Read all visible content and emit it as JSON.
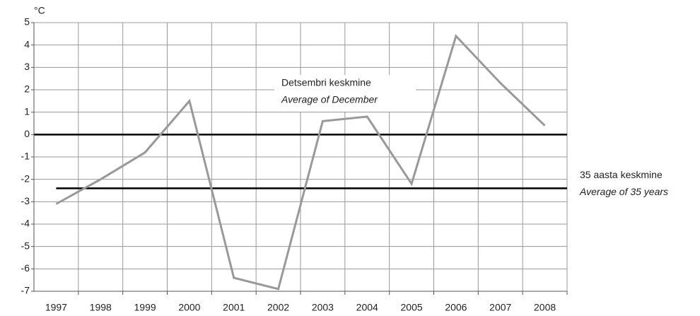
{
  "chart_data": {
    "type": "line",
    "y_unit": "°C",
    "categories": [
      "1997",
      "1998",
      "1999",
      "2000",
      "2001",
      "2002",
      "2003",
      "2004",
      "2005",
      "2006",
      "2007",
      "2008"
    ],
    "series": [
      {
        "color": "#999999",
        "values": [
          -3.1,
          -2.0,
          -0.8,
          1.5,
          -6.4,
          -6.9,
          0.6,
          0.8,
          -2.2,
          4.4,
          2.3,
          0.4
        ]
      }
    ],
    "ylim": [
      -7,
      5
    ],
    "yticks": [
      -7,
      -6,
      -5,
      -4,
      -3,
      -2,
      -1,
      0,
      1,
      2,
      3,
      4,
      5
    ],
    "grid": true,
    "annotation": [
      "Detsembri keskmine",
      "Average of December"
    ],
    "reference_line": {
      "value": -2.4,
      "color": "#000000",
      "label": [
        "35 aasta keskmine",
        "Average of 35 years"
      ]
    }
  }
}
